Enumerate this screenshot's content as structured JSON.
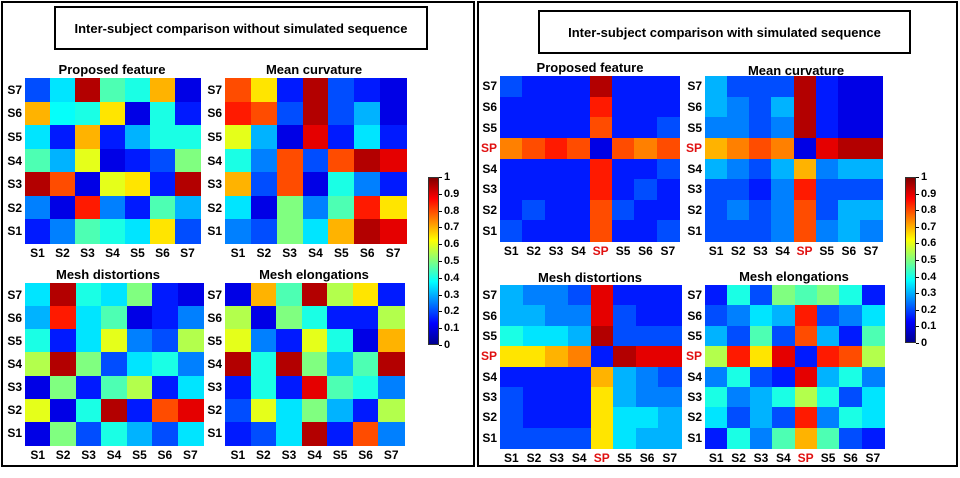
{
  "panels": [
    {
      "id": "left",
      "title": "Inter-subject comparison without simulated sequence",
      "rows_top_to_bottom": [
        "S7",
        "S6",
        "S5",
        "S4",
        "S3",
        "S2",
        "S1"
      ],
      "cols": [
        "S1",
        "S2",
        "S3",
        "S4",
        "S5",
        "S6",
        "S7"
      ],
      "highlight_label": null,
      "heatmaps": [
        {
          "title": "Proposed feature",
          "matrix": [
            [
              0.2,
              0.35,
              0.95,
              0.45,
              0.4,
              0.7,
              0.1
            ],
            [
              0.7,
              0.38,
              0.4,
              0.65,
              0.1,
              0.4,
              0.15
            ],
            [
              0.35,
              0.15,
              0.7,
              0.15,
              0.3,
              0.4,
              0.4
            ],
            [
              0.45,
              0.3,
              0.6,
              0.1,
              0.15,
              0.2,
              0.5
            ],
            [
              0.95,
              0.8,
              0.1,
              0.6,
              0.65,
              0.15,
              0.95
            ],
            [
              0.25,
              0.1,
              0.85,
              0.25,
              0.15,
              0.45,
              0.3
            ],
            [
              0.15,
              0.25,
              0.45,
              0.4,
              0.35,
              0.65,
              0.2
            ]
          ]
        },
        {
          "title": "Mean curvature",
          "matrix": [
            [
              0.8,
              0.65,
              0.15,
              0.95,
              0.2,
              0.15,
              0.1
            ],
            [
              0.85,
              0.8,
              0.2,
              0.95,
              0.2,
              0.3,
              0.1
            ],
            [
              0.6,
              0.3,
              0.1,
              0.9,
              0.15,
              0.35,
              0.15
            ],
            [
              0.4,
              0.25,
              0.8,
              0.2,
              0.8,
              0.95,
              0.9
            ],
            [
              0.7,
              0.2,
              0.8,
              0.1,
              0.4,
              0.25,
              0.15
            ],
            [
              0.35,
              0.1,
              0.5,
              0.25,
              0.45,
              0.85,
              0.65
            ],
            [
              0.25,
              0.2,
              0.5,
              0.35,
              0.7,
              0.95,
              0.9
            ]
          ]
        },
        {
          "title": "Mesh distortions",
          "matrix": [
            [
              0.35,
              0.95,
              0.4,
              0.35,
              0.5,
              0.15,
              0.1
            ],
            [
              0.3,
              0.85,
              0.35,
              0.45,
              0.1,
              0.15,
              0.25
            ],
            [
              0.4,
              0.15,
              0.35,
              0.6,
              0.25,
              0.2,
              0.55
            ],
            [
              0.55,
              0.95,
              0.5,
              0.2,
              0.35,
              0.4,
              0.25
            ],
            [
              0.1,
              0.5,
              0.15,
              0.45,
              0.55,
              0.15,
              0.35
            ],
            [
              0.6,
              0.1,
              0.4,
              0.95,
              0.15,
              0.8,
              0.9
            ],
            [
              0.1,
              0.5,
              0.2,
              0.4,
              0.3,
              0.2,
              0.35
            ]
          ]
        },
        {
          "title": "Mesh elongations",
          "matrix": [
            [
              0.1,
              0.7,
              0.45,
              0.95,
              0.55,
              0.65,
              0.15
            ],
            [
              0.55,
              0.1,
              0.5,
              0.4,
              0.15,
              0.15,
              0.55
            ],
            [
              0.6,
              0.25,
              0.15,
              0.6,
              0.4,
              0.1,
              0.7
            ],
            [
              0.95,
              0.4,
              0.95,
              0.5,
              0.3,
              0.45,
              0.95
            ],
            [
              0.15,
              0.4,
              0.15,
              0.9,
              0.45,
              0.4,
              0.25
            ],
            [
              0.2,
              0.6,
              0.35,
              0.5,
              0.3,
              0.15,
              0.55
            ],
            [
              0.15,
              0.2,
              0.35,
              0.95,
              0.15,
              0.8,
              0.25
            ]
          ]
        }
      ]
    },
    {
      "id": "right",
      "title": "Inter-subject comparison with simulated sequence",
      "rows_top_to_bottom": [
        "S7",
        "S6",
        "S5",
        "SP",
        "S4",
        "S3",
        "S2",
        "S1"
      ],
      "cols": [
        "S1",
        "S2",
        "S3",
        "S4",
        "SP",
        "S5",
        "S6",
        "S7"
      ],
      "highlight_label": "SP",
      "heatmaps": [
        {
          "title": "Proposed feature",
          "matrix": [
            [
              0.2,
              0.15,
              0.15,
              0.15,
              0.95,
              0.15,
              0.15,
              0.15
            ],
            [
              0.15,
              0.15,
              0.15,
              0.15,
              0.85,
              0.15,
              0.15,
              0.15
            ],
            [
              0.15,
              0.15,
              0.15,
              0.15,
              0.8,
              0.15,
              0.15,
              0.2
            ],
            [
              0.75,
              0.8,
              0.85,
              0.8,
              0.1,
              0.8,
              0.75,
              0.8
            ],
            [
              0.15,
              0.15,
              0.15,
              0.15,
              0.85,
              0.15,
              0.15,
              0.2
            ],
            [
              0.15,
              0.15,
              0.15,
              0.15,
              0.85,
              0.15,
              0.2,
              0.15
            ],
            [
              0.15,
              0.2,
              0.15,
              0.15,
              0.8,
              0.2,
              0.15,
              0.15
            ],
            [
              0.2,
              0.15,
              0.15,
              0.15,
              0.8,
              0.15,
              0.15,
              0.2
            ]
          ]
        },
        {
          "title": "Mean  curvature",
          "matrix": [
            [
              0.3,
              0.2,
              0.2,
              0.2,
              0.95,
              0.15,
              0.1,
              0.1
            ],
            [
              0.3,
              0.25,
              0.2,
              0.3,
              0.95,
              0.15,
              0.1,
              0.1
            ],
            [
              0.25,
              0.25,
              0.2,
              0.25,
              0.95,
              0.15,
              0.1,
              0.1
            ],
            [
              0.7,
              0.75,
              0.8,
              0.75,
              0.1,
              0.9,
              0.95,
              0.95
            ],
            [
              0.3,
              0.25,
              0.2,
              0.3,
              0.7,
              0.25,
              0.3,
              0.3
            ],
            [
              0.2,
              0.2,
              0.15,
              0.25,
              0.85,
              0.2,
              0.2,
              0.2
            ],
            [
              0.2,
              0.25,
              0.2,
              0.25,
              0.8,
              0.2,
              0.3,
              0.3
            ],
            [
              0.2,
              0.2,
              0.2,
              0.25,
              0.8,
              0.25,
              0.3,
              0.25
            ]
          ]
        },
        {
          "title": "Mesh distortions",
          "matrix": [
            [
              0.3,
              0.25,
              0.25,
              0.2,
              0.9,
              0.15,
              0.15,
              0.15
            ],
            [
              0.3,
              0.3,
              0.25,
              0.25,
              0.9,
              0.2,
              0.15,
              0.15
            ],
            [
              0.4,
              0.35,
              0.35,
              0.3,
              0.95,
              0.2,
              0.2,
              0.2
            ],
            [
              0.65,
              0.65,
              0.7,
              0.75,
              0.15,
              0.95,
              0.9,
              0.9
            ],
            [
              0.15,
              0.15,
              0.15,
              0.15,
              0.7,
              0.3,
              0.25,
              0.2
            ],
            [
              0.2,
              0.15,
              0.15,
              0.15,
              0.65,
              0.3,
              0.25,
              0.25
            ],
            [
              0.2,
              0.15,
              0.15,
              0.15,
              0.65,
              0.35,
              0.35,
              0.3
            ],
            [
              0.2,
              0.2,
              0.2,
              0.2,
              0.65,
              0.35,
              0.3,
              0.3
            ]
          ]
        },
        {
          "title": "Mesh elongations",
          "matrix": [
            [
              0.15,
              0.4,
              0.2,
              0.5,
              0.45,
              0.5,
              0.4,
              0.15
            ],
            [
              0.2,
              0.25,
              0.35,
              0.3,
              0.85,
              0.2,
              0.25,
              0.35
            ],
            [
              0.3,
              0.2,
              0.45,
              0.2,
              0.8,
              0.3,
              0.15,
              0.45
            ],
            [
              0.55,
              0.85,
              0.65,
              0.9,
              0.15,
              0.85,
              0.8,
              0.55
            ],
            [
              0.25,
              0.4,
              0.2,
              0.15,
              0.9,
              0.3,
              0.4,
              0.25
            ],
            [
              0.4,
              0.25,
              0.3,
              0.4,
              0.55,
              0.4,
              0.2,
              0.35
            ],
            [
              0.35,
              0.2,
              0.3,
              0.2,
              0.85,
              0.25,
              0.4,
              0.35
            ],
            [
              0.15,
              0.4,
              0.25,
              0.45,
              0.7,
              0.45,
              0.2,
              0.15
            ]
          ]
        }
      ]
    }
  ],
  "colorbar": {
    "colormap": "jet",
    "range": [
      0,
      1
    ],
    "ticks": [
      "0",
      "0.1",
      "0.2",
      "0.3",
      "0.4",
      "0.5",
      "0.6",
      "0.7",
      "0.8",
      "0.9",
      "1"
    ]
  },
  "highlight_color": "#e01010"
}
